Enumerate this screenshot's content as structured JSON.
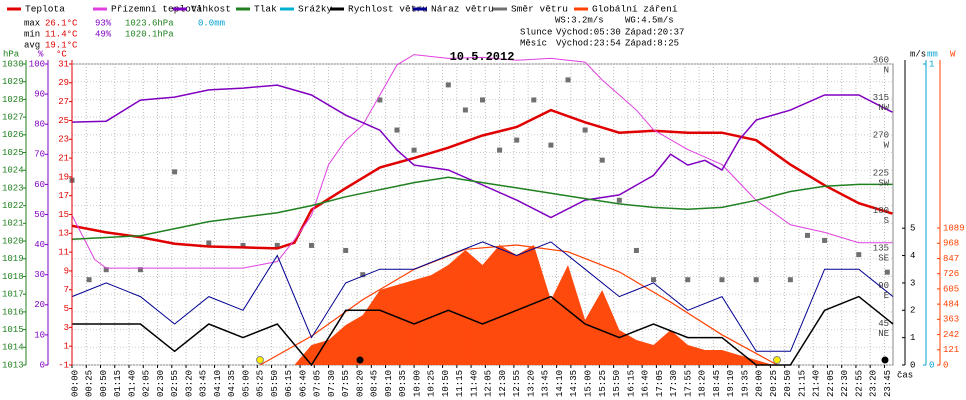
{
  "chart_data": {
    "type": "line",
    "title": "10.5.2012",
    "x_label": "čas",
    "xlim": [
      0,
      1440
    ],
    "grid": true,
    "xticks": [
      {
        "value": 0,
        "label": "00:00"
      },
      {
        "value": 25,
        "label": "00:25"
      },
      {
        "value": 50,
        "label": "00:50"
      },
      {
        "value": 75,
        "label": "01:15"
      },
      {
        "value": 100,
        "label": "01:40"
      },
      {
        "value": 125,
        "label": "02:05"
      },
      {
        "value": 150,
        "label": "02:30"
      },
      {
        "value": 175,
        "label": "02:55"
      },
      {
        "value": 200,
        "label": "03:20"
      },
      {
        "value": 225,
        "label": "03:45"
      },
      {
        "value": 250,
        "label": "04:10"
      },
      {
        "value": 275,
        "label": "04:35"
      },
      {
        "value": 300,
        "label": "05:00"
      },
      {
        "value": 325,
        "label": "05:25"
      },
      {
        "value": 350,
        "label": "05:50"
      },
      {
        "value": 375,
        "label": "06:15"
      },
      {
        "value": 400,
        "label": "06:40"
      },
      {
        "value": 425,
        "label": "07:05"
      },
      {
        "value": 450,
        "label": "07:30"
      },
      {
        "value": 475,
        "label": "07:55"
      },
      {
        "value": 500,
        "label": "08:20"
      },
      {
        "value": 525,
        "label": "08:45"
      },
      {
        "value": 550,
        "label": "09:10"
      },
      {
        "value": 575,
        "label": "09:35"
      },
      {
        "value": 600,
        "label": "10:00"
      },
      {
        "value": 625,
        "label": "10:25"
      },
      {
        "value": 650,
        "label": "10:50"
      },
      {
        "value": 675,
        "label": "11:15"
      },
      {
        "value": 700,
        "label": "11:40"
      },
      {
        "value": 725,
        "label": "12:05"
      },
      {
        "value": 750,
        "label": "12:30"
      },
      {
        "value": 775,
        "label": "12:55"
      },
      {
        "value": 800,
        "label": "13:20"
      },
      {
        "value": 825,
        "label": "13:45"
      },
      {
        "value": 850,
        "label": "14:10"
      },
      {
        "value": 875,
        "label": "14:35"
      },
      {
        "value": 900,
        "label": "15:00"
      },
      {
        "value": 925,
        "label": "15:25"
      },
      {
        "value": 950,
        "label": "15:50"
      },
      {
        "value": 975,
        "label": "16:15"
      },
      {
        "value": 1000,
        "label": "16:40"
      },
      {
        "value": 1025,
        "label": "17:05"
      },
      {
        "value": 1050,
        "label": "17:30"
      },
      {
        "value": 1075,
        "label": "17:55"
      },
      {
        "value": 1100,
        "label": "18:20"
      },
      {
        "value": 1125,
        "label": "18:45"
      },
      {
        "value": 1150,
        "label": "19:10"
      },
      {
        "value": 1175,
        "label": "19:35"
      },
      {
        "value": 1200,
        "label": "20:00"
      },
      {
        "value": 1225,
        "label": "20:25"
      },
      {
        "value": 1250,
        "label": "20:50"
      },
      {
        "value": 1275,
        "label": "21:15"
      },
      {
        "value": 1300,
        "label": "21:40"
      },
      {
        "value": 1325,
        "label": "22:05"
      },
      {
        "value": 1350,
        "label": "22:30"
      },
      {
        "value": 1375,
        "label": "22:55"
      },
      {
        "value": 1400,
        "label": "23:20"
      },
      {
        "value": 1425,
        "label": "23:45"
      }
    ],
    "axes": [
      {
        "id": "pressure",
        "label": "hPa",
        "color": "#208020",
        "ylim": [
          1013,
          1030
        ],
        "yticks": [
          1013,
          1014,
          1015,
          1016,
          1017,
          1018,
          1019,
          1020,
          1021,
          1022,
          1023,
          1024,
          1025,
          1026,
          1027,
          1028,
          1029,
          1030
        ]
      },
      {
        "id": "humidity",
        "label": "%",
        "color": "#8000c0",
        "ylim": [
          0,
          100
        ],
        "yticks": [
          0,
          10,
          20,
          30,
          40,
          50,
          60,
          70,
          80,
          90,
          100
        ]
      },
      {
        "id": "temperature",
        "label": "°C",
        "color": "#e00000",
        "ylim": [
          -1,
          31
        ],
        "yticks": [
          -1,
          1,
          3,
          5,
          7,
          9,
          11,
          13,
          15,
          17,
          19,
          21,
          23,
          25,
          27,
          29,
          31
        ]
      },
      {
        "id": "direction",
        "color": "#404040",
        "ylim": [
          0,
          360
        ],
        "yticks": [
          360,
          315,
          270,
          225,
          180,
          135,
          90,
          45
        ],
        "compass": [
          "N",
          "NW",
          "W",
          "SW",
          "S",
          "SE",
          "E",
          "NE"
        ]
      },
      {
        "id": "wind",
        "label": "m/s",
        "color": "#000000",
        "ylim": [
          0,
          11
        ],
        "yticks": [
          0,
          1,
          2,
          3,
          4,
          5
        ]
      },
      {
        "id": "rain",
        "label": "mm",
        "color": "#00a0d0",
        "ylim": [
          0,
          1
        ],
        "yticks": [
          0,
          1
        ]
      },
      {
        "id": "radiation",
        "label": "W",
        "color": "#ff4000",
        "ylim": [
          0,
          2393
        ],
        "yticks": [
          0,
          121,
          242,
          363,
          484,
          605,
          726,
          847,
          968,
          1089
        ]
      }
    ],
    "series": [
      {
        "name": "Teplota",
        "color": "#e00000",
        "type": "line",
        "axis": "temperature",
        "width": 2.5,
        "x": [
          0,
          60,
          120,
          180,
          240,
          300,
          360,
          390,
          420,
          480,
          540,
          600,
          660,
          720,
          780,
          840,
          900,
          960,
          1020,
          1080,
          1140,
          1200,
          1260,
          1320,
          1380,
          1439
        ],
        "values": [
          13.8,
          13.1,
          12.6,
          11.9,
          11.6,
          11.5,
          11.4,
          12.0,
          15.5,
          17.8,
          20.0,
          21.0,
          22.1,
          23.4,
          24.3,
          26.1,
          24.8,
          23.7,
          23.9,
          23.7,
          23.7,
          22.9,
          20.3,
          18.1,
          16.2,
          15.1
        ]
      },
      {
        "name": "Přízemní teplota",
        "color": "#e040e0",
        "type": "line",
        "axis": "temperature",
        "width": 1,
        "x": [
          0,
          40,
          60,
          120,
          180,
          240,
          300,
          360,
          390,
          420,
          450,
          480,
          510,
          540,
          570,
          600,
          660,
          720,
          780,
          840,
          900,
          930,
          960,
          990,
          1020,
          1080,
          1140,
          1200,
          1260,
          1320,
          1380,
          1439
        ],
        "values": [
          14.9,
          10.2,
          9.3,
          9.3,
          9.3,
          9.3,
          9.3,
          10.0,
          12.3,
          14.9,
          20.3,
          22.9,
          24.5,
          27.7,
          30.9,
          32.0,
          31.6,
          31.7,
          31.4,
          31.6,
          31.2,
          29.3,
          27.7,
          26.1,
          24.0,
          21.9,
          20.3,
          16.5,
          13.9,
          13.1,
          12.0,
          12.0
        ]
      },
      {
        "name": "Vlhkost",
        "color": "#8000c0",
        "type": "line",
        "axis": "humidity",
        "width": 1.5,
        "x": [
          0,
          60,
          120,
          180,
          240,
          300,
          360,
          420,
          480,
          540,
          570,
          600,
          660,
          720,
          780,
          840,
          900,
          960,
          1020,
          1050,
          1080,
          1110,
          1140,
          1170,
          1200,
          1260,
          1320,
          1380,
          1439
        ],
        "values": [
          80.7,
          81,
          88,
          89,
          91.4,
          92,
          93,
          89.7,
          83,
          78,
          71.4,
          66.4,
          64.8,
          59.8,
          54.8,
          49,
          54.8,
          56.5,
          63,
          70,
          66.4,
          68,
          64.8,
          74.8,
          81.4,
          84.7,
          89.7,
          89.7,
          84
        ]
      },
      {
        "name": "Tlak",
        "color": "#208020",
        "type": "line",
        "axis": "pressure",
        "width": 1.5,
        "x": [
          0,
          120,
          240,
          360,
          420,
          480,
          540,
          600,
          660,
          720,
          780,
          840,
          900,
          960,
          1020,
          1080,
          1140,
          1200,
          1260,
          1320,
          1380,
          1439
        ],
        "values": [
          1020.1,
          1020.3,
          1021.1,
          1021.6,
          1022.0,
          1022.5,
          1022.9,
          1023.3,
          1023.6,
          1023.3,
          1023.0,
          1022.7,
          1022.4,
          1022.1,
          1021.9,
          1021.8,
          1021.9,
          1022.3,
          1022.8,
          1023.1,
          1023.2,
          1023.2
        ]
      },
      {
        "name": "Srážky",
        "color": "#00b0d0",
        "type": "line",
        "axis": "rain",
        "width": 1,
        "x": [],
        "values": []
      },
      {
        "name": "Rychlost větru",
        "color": "#000000",
        "type": "line",
        "axis": "wind",
        "width": 1.5,
        "x": [
          0,
          60,
          120,
          180,
          240,
          300,
          360,
          420,
          480,
          540,
          600,
          660,
          720,
          780,
          840,
          900,
          960,
          1020,
          1080,
          1140,
          1200,
          1260,
          1320,
          1380,
          1440
        ],
        "values": [
          1.5,
          1.5,
          1.5,
          0.5,
          1.5,
          1.0,
          1.5,
          0,
          2.0,
          2.0,
          1.5,
          2.0,
          1.5,
          2.0,
          2.5,
          1.5,
          1.0,
          1.5,
          1.0,
          1.0,
          0,
          0,
          2.0,
          2.5,
          1.5
        ]
      },
      {
        "name": "Náraz větru",
        "color": "#000090",
        "type": "line",
        "axis": "wind",
        "width": 1,
        "x": [
          0,
          60,
          120,
          180,
          240,
          300,
          360,
          420,
          480,
          540,
          600,
          660,
          720,
          780,
          840,
          900,
          960,
          1020,
          1080,
          1140,
          1200,
          1260,
          1320,
          1380,
          1440
        ],
        "values": [
          2.5,
          3.0,
          2.5,
          1.5,
          2.5,
          2.0,
          4.0,
          1.0,
          3.0,
          3.5,
          3.5,
          4.0,
          4.5,
          4.0,
          4.5,
          3.5,
          2.5,
          3.0,
          2.0,
          2.5,
          0.5,
          0.5,
          3.5,
          3.5,
          2.5
        ]
      },
      {
        "name": "Směr větru",
        "color": "#707070",
        "type": "scatter",
        "axis": "direction",
        "x": [
          0,
          30,
          60,
          120,
          180,
          240,
          300,
          360,
          420,
          480,
          510,
          540,
          570,
          600,
          660,
          690,
          720,
          750,
          780,
          810,
          840,
          870,
          900,
          930,
          960,
          990,
          1020,
          1080,
          1140,
          1200,
          1260,
          1290,
          1320,
          1380,
          1430
        ],
        "values": [
          221,
          102,
          114,
          114,
          231,
          146,
          143,
          143,
          143,
          137,
          108,
          317,
          281,
          257,
          335,
          305,
          317,
          257,
          269,
          317,
          263,
          341,
          281,
          245,
          197,
          137,
          102,
          102,
          102,
          102,
          102,
          155,
          149,
          132,
          111
        ]
      },
      {
        "name": "Globální záření",
        "color": "#ff4000",
        "type": "area",
        "axis": "radiation",
        "x": [
          0,
          390,
          420,
          450,
          480,
          510,
          540,
          570,
          600,
          630,
          660,
          690,
          720,
          750,
          780,
          810,
          840,
          870,
          900,
          930,
          960,
          990,
          1020,
          1050,
          1080,
          1110,
          1140,
          1170,
          1200,
          1230,
          1440
        ],
        "values": [
          0,
          0,
          159,
          199,
          318,
          397,
          596,
          636,
          676,
          715,
          795,
          914,
          795,
          954,
          874,
          954,
          517,
          795,
          358,
          596,
          278,
          199,
          159,
          278,
          159,
          119,
          119,
          79,
          40,
          0,
          0
        ],
        "clear_sky_x": [
          330,
          420,
          510,
          600,
          690,
          780,
          870,
          960,
          1050,
          1140,
          1237
        ],
        "clear_sky": [
          0,
          230,
          520,
          760,
          920,
          954,
          900,
          740,
          500,
          240,
          0
        ]
      }
    ],
    "stats": {
      "max": [
        "max",
        "26.1°C",
        "93%",
        "1023.6hPa",
        "0.0mm"
      ],
      "min": [
        "min",
        "11.4°C",
        "49%",
        "1020.1hPa"
      ],
      "avg": [
        "avg",
        "19.1°C"
      ]
    },
    "wind_stats": [
      "WS:3.2m/s",
      "WG:4.5m/s"
    ],
    "sun": [
      "Slunce",
      "Východ:05:30",
      "Západ:20:37"
    ],
    "moon": [
      "Měsíc",
      "Východ:23:54",
      "Západ:8:25"
    ]
  }
}
